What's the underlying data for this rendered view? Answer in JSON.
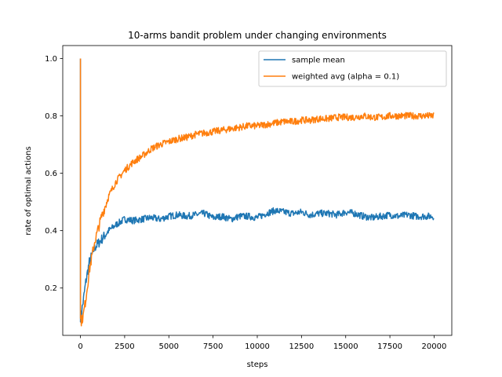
{
  "chart_data": {
    "type": "line",
    "title": "10-arms bandit problem under changing environments",
    "xlabel": "steps",
    "ylabel": "rate of optimal actions",
    "xlim": [
      -1000,
      21000
    ],
    "ylim": [
      0.035,
      1.045
    ],
    "xticks": [
      0,
      2500,
      5000,
      7500,
      10000,
      12500,
      15000,
      17500,
      20000
    ],
    "xtick_labels": [
      "0",
      "2500",
      "5000",
      "7500",
      "10000",
      "12500",
      "15000",
      "17500",
      "20000"
    ],
    "yticks": [
      0.2,
      0.4,
      0.6,
      0.8,
      1.0
    ],
    "ytick_labels": [
      "0.2",
      "0.4",
      "0.6",
      "0.8",
      "1.0"
    ],
    "legend_position": "top-right",
    "grid": false,
    "noise_amplitude": 0.012,
    "series": [
      {
        "name": "sample mean",
        "color": "#1f77b4",
        "x": [
          0,
          1,
          50,
          150,
          300,
          500,
          800,
          1200,
          1600,
          2000,
          2500,
          3000,
          3500,
          4000,
          4500,
          5000,
          5500,
          6000,
          6500,
          7000,
          7500,
          8000,
          8500,
          9000,
          9500,
          10000,
          10500,
          11000,
          11500,
          12000,
          12500,
          13000,
          13500,
          14000,
          14500,
          15000,
          15500,
          16000,
          16500,
          17000,
          17500,
          18000,
          18500,
          19000,
          19500,
          20000
        ],
        "values": [
          1.0,
          0.1,
          0.11,
          0.15,
          0.22,
          0.29,
          0.34,
          0.37,
          0.4,
          0.42,
          0.44,
          0.435,
          0.44,
          0.445,
          0.44,
          0.45,
          0.455,
          0.45,
          0.455,
          0.46,
          0.445,
          0.45,
          0.44,
          0.45,
          0.45,
          0.445,
          0.46,
          0.47,
          0.465,
          0.46,
          0.465,
          0.455,
          0.46,
          0.46,
          0.455,
          0.465,
          0.46,
          0.45,
          0.445,
          0.45,
          0.455,
          0.45,
          0.455,
          0.45,
          0.45,
          0.45
        ]
      },
      {
        "name": "weighted avg (alpha = 0.1)",
        "color": "#ff7f0e",
        "x": [
          0,
          1,
          50,
          150,
          300,
          500,
          800,
          1200,
          1600,
          2000,
          2500,
          3000,
          3500,
          4000,
          4500,
          5000,
          5500,
          6000,
          6500,
          7000,
          7500,
          8000,
          8500,
          9000,
          9500,
          10000,
          10500,
          11000,
          11500,
          12000,
          12500,
          13000,
          13500,
          14000,
          14500,
          15000,
          15500,
          16000,
          16500,
          17000,
          17500,
          18000,
          18500,
          19000,
          19500,
          20000
        ],
        "values": [
          1.0,
          0.09,
          0.085,
          0.1,
          0.16,
          0.26,
          0.36,
          0.45,
          0.52,
          0.57,
          0.61,
          0.64,
          0.66,
          0.685,
          0.7,
          0.71,
          0.72,
          0.725,
          0.735,
          0.74,
          0.745,
          0.75,
          0.755,
          0.76,
          0.765,
          0.765,
          0.77,
          0.775,
          0.78,
          0.78,
          0.785,
          0.785,
          0.79,
          0.79,
          0.795,
          0.795,
          0.795,
          0.8,
          0.795,
          0.795,
          0.8,
          0.8,
          0.8,
          0.8,
          0.8,
          0.8
        ]
      }
    ]
  }
}
